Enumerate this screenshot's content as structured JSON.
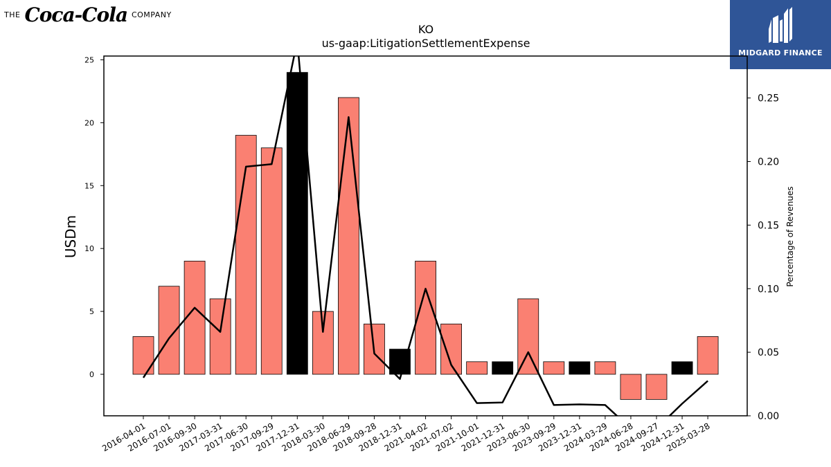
{
  "header": {
    "left_logo_prefix": "THE",
    "left_logo_name": "Coca-Cola",
    "left_logo_suffix": "COMPANY",
    "right_logo_name": "MIDGARD FINANCE",
    "right_logo_color": "#2f5597"
  },
  "chart_data": {
    "type": "bar",
    "title": "KO",
    "subtitle": "us-gaap:LitigationSettlementExpense",
    "ylabel": "USDm",
    "y2label": "Percentage of Revenues",
    "ylim": [
      -3.3,
      25.3
    ],
    "y2lim": [
      0.0,
      0.283
    ],
    "yticks": [
      0,
      5,
      10,
      15,
      20,
      25
    ],
    "y2ticks": [
      "0.00",
      "0.05",
      "0.10",
      "0.15",
      "0.20",
      "0.25"
    ],
    "categories": [
      "2016-04-01",
      "2016-07-01",
      "2016-09-30",
      "2017-03-31",
      "2017-06-30",
      "2017-09-29",
      "2017-12-31",
      "2018-03-30",
      "2018-06-29",
      "2018-09-28",
      "2018-12-31",
      "2021-04-02",
      "2021-07-02",
      "2021-10-01",
      "2021-12-31",
      "2023-06-30",
      "2023-09-29",
      "2023-12-31",
      "2024-03-29",
      "2024-06-28",
      "2024-09-27",
      "2024-12-31",
      "2025-03-28"
    ],
    "series": [
      {
        "kind": "bar",
        "values": [
          3,
          7,
          9,
          6,
          19,
          18,
          24,
          5,
          22,
          4,
          2,
          9,
          4,
          1,
          1,
          6,
          1,
          1,
          1,
          -2,
          -2,
          1,
          3
        ],
        "highlight": [
          false,
          false,
          false,
          false,
          false,
          false,
          true,
          false,
          false,
          false,
          true,
          false,
          false,
          false,
          true,
          false,
          false,
          true,
          false,
          false,
          false,
          true,
          false
        ]
      },
      {
        "kind": "line",
        "axis": "right",
        "values": [
          0.03,
          0.061,
          0.085,
          0.066,
          0.196,
          0.198,
          0.295,
          0.066,
          0.235,
          0.049,
          0.029,
          0.1,
          0.04,
          0.01,
          0.0105,
          0.05,
          0.0085,
          0.009,
          0.0085,
          -0.01,
          -0.01,
          0.0095,
          0.0275
        ]
      }
    ],
    "colors": {
      "bar": "#fa8072",
      "bar_highlight": "#000000",
      "line": "#000000"
    },
    "legend": "none",
    "grid": false
  }
}
